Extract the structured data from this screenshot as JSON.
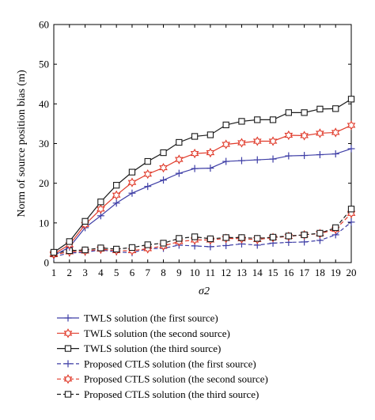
{
  "chart_data": {
    "type": "line",
    "x": [
      1,
      2,
      3,
      4,
      5,
      6,
      7,
      8,
      9,
      10,
      11,
      12,
      13,
      14,
      15,
      16,
      17,
      18,
      19,
      20
    ],
    "xlabel": "σ2",
    "ylabel": "Norm of source position bias (m)",
    "xlim": [
      1,
      20
    ],
    "ylim": [
      0,
      60
    ],
    "xticks": [
      1,
      2,
      3,
      4,
      5,
      6,
      7,
      8,
      9,
      10,
      11,
      12,
      13,
      14,
      15,
      16,
      17,
      18,
      19,
      20
    ],
    "yticks": [
      0,
      10,
      20,
      30,
      40,
      50,
      60
    ],
    "grid": false,
    "legend_position": "below plot",
    "series": [
      {
        "name": "TWLS solution (the first source)",
        "color": "#3e3ea6",
        "marker": "plus",
        "dash": "solid",
        "values": [
          1.8,
          3.9,
          8.8,
          11.8,
          15.0,
          17.5,
          19.2,
          20.8,
          22.5,
          23.7,
          23.8,
          25.5,
          25.7,
          25.9,
          26.1,
          26.9,
          27.0,
          27.2,
          27.4,
          28.7
        ]
      },
      {
        "name": "TWLS solution (the second source)",
        "color": "#e03a2a",
        "marker": "star",
        "dash": "solid",
        "values": [
          2.2,
          4.5,
          9.6,
          13.5,
          17.0,
          20.2,
          22.3,
          23.9,
          26.0,
          27.5,
          27.7,
          29.8,
          30.2,
          30.6,
          30.6,
          32.1,
          32.0,
          32.6,
          32.8,
          34.6
        ]
      },
      {
        "name": "TWLS solution (the third source)",
        "color": "#1a1a1a",
        "marker": "square",
        "dash": "solid",
        "values": [
          2.6,
          5.3,
          10.4,
          15.3,
          19.5,
          22.8,
          25.5,
          27.7,
          30.3,
          31.8,
          32.2,
          34.7,
          35.6,
          36.0,
          36.0,
          37.8,
          37.8,
          38.7,
          38.8,
          41.2
        ]
      },
      {
        "name": "Proposed CTLS solution (the first source)",
        "color": "#3e3ea6",
        "marker": "plus",
        "dash": "dashed",
        "values": [
          1.5,
          2.4,
          2.6,
          3.2,
          2.7,
          2.5,
          3.5,
          3.6,
          4.4,
          4.2,
          4.0,
          4.3,
          4.7,
          4.4,
          4.9,
          5.1,
          5.2,
          5.6,
          7.0,
          10.2
        ]
      },
      {
        "name": "Proposed CTLS solution (the second source)",
        "color": "#e03a2a",
        "marker": "star",
        "dash": "dashed",
        "values": [
          2.0,
          2.7,
          2.9,
          3.4,
          3.0,
          3.0,
          3.5,
          4.2,
          5.3,
          5.7,
          5.7,
          6.1,
          6.0,
          5.8,
          6.3,
          6.6,
          7.0,
          7.3,
          8.4,
          12.4
        ]
      },
      {
        "name": "Proposed CTLS solution (the third source)",
        "color": "#1a1a1a",
        "marker": "square",
        "dash": "dashed",
        "values": [
          2.3,
          3.0,
          3.2,
          3.7,
          3.4,
          3.8,
          4.5,
          4.9,
          6.1,
          6.5,
          6.0,
          6.3,
          6.3,
          6.1,
          6.4,
          6.7,
          7.0,
          7.4,
          8.8,
          13.5
        ]
      }
    ]
  }
}
